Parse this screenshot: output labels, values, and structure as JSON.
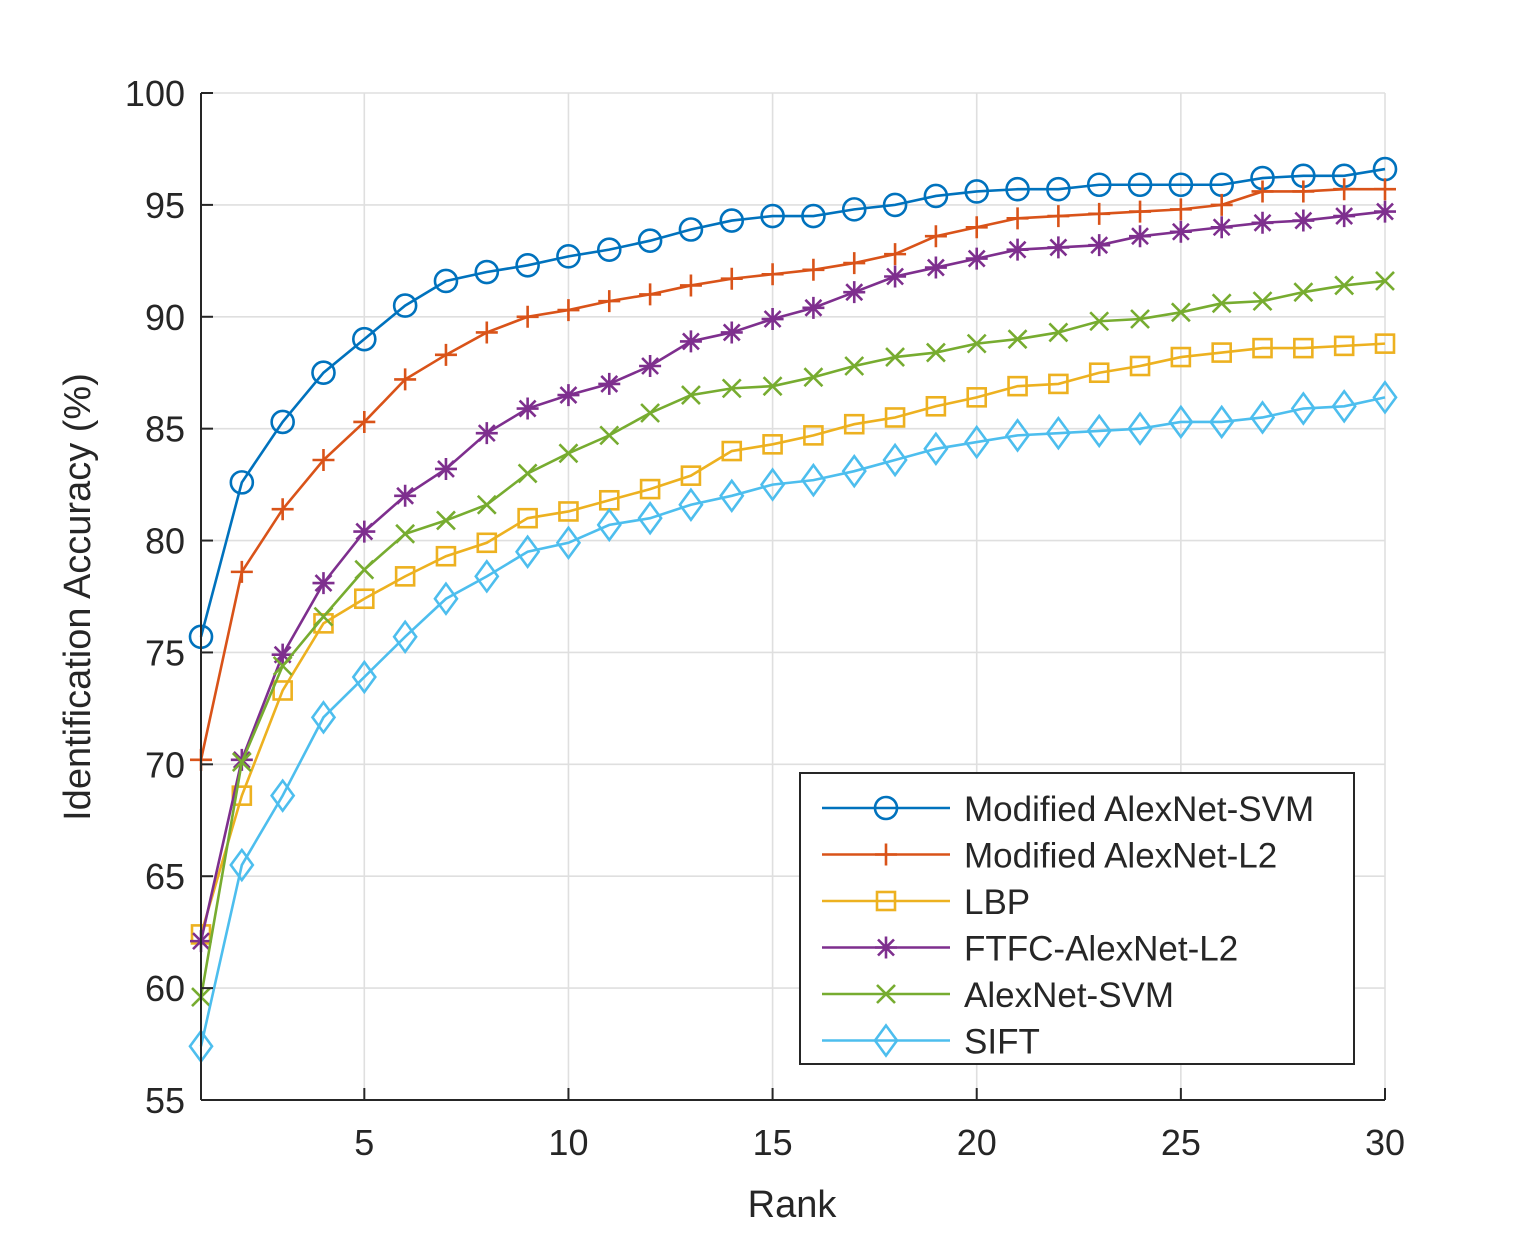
{
  "chart_data": {
    "type": "line",
    "xlabel": "Rank",
    "ylabel": "Identification Accuracy (%)",
    "xlim": [
      1,
      30
    ],
    "ylim": [
      55,
      100
    ],
    "x_ticks": [
      5,
      10,
      15,
      20,
      25,
      30
    ],
    "y_ticks": [
      55,
      60,
      65,
      70,
      75,
      80,
      85,
      90,
      95,
      100
    ],
    "grid": true,
    "legend_position": "bottom-right",
    "x": [
      1,
      2,
      3,
      4,
      5,
      6,
      7,
      8,
      9,
      10,
      11,
      12,
      13,
      14,
      15,
      16,
      17,
      18,
      19,
      20,
      21,
      22,
      23,
      24,
      25,
      26,
      27,
      28,
      29,
      30
    ],
    "series": [
      {
        "name": "Modified AlexNet-SVM",
        "color": "#0072BD",
        "marker": "circle",
        "values": [
          75.7,
          82.6,
          85.3,
          87.5,
          89.0,
          90.5,
          91.6,
          92.0,
          92.3,
          92.7,
          93.0,
          93.4,
          93.9,
          94.3,
          94.5,
          94.5,
          94.8,
          95.0,
          95.4,
          95.6,
          95.7,
          95.7,
          95.9,
          95.9,
          95.9,
          95.9,
          96.2,
          96.3,
          96.3,
          96.6
        ]
      },
      {
        "name": "Modified AlexNet-L2",
        "color": "#D95319",
        "marker": "plus",
        "values": [
          70.2,
          78.6,
          81.4,
          83.6,
          85.3,
          87.2,
          88.3,
          89.3,
          90.0,
          90.3,
          90.7,
          91.0,
          91.4,
          91.7,
          91.9,
          92.1,
          92.4,
          92.8,
          93.6,
          94.0,
          94.4,
          94.5,
          94.6,
          94.7,
          94.8,
          95.0,
          95.6,
          95.6,
          95.7,
          95.7
        ]
      },
      {
        "name": "LBP",
        "color": "#EDB120",
        "marker": "square",
        "values": [
          62.4,
          68.6,
          73.3,
          76.3,
          77.4,
          78.4,
          79.3,
          79.9,
          81.0,
          81.3,
          81.8,
          82.3,
          82.9,
          84.0,
          84.3,
          84.7,
          85.2,
          85.5,
          86.0,
          86.4,
          86.9,
          87.0,
          87.5,
          87.8,
          88.2,
          88.4,
          88.6,
          88.6,
          88.7,
          88.8
        ]
      },
      {
        "name": "FTFC-AlexNet-L2",
        "color": "#7E2F8E",
        "marker": "asterisk",
        "values": [
          62.1,
          70.2,
          74.9,
          78.1,
          80.4,
          82.0,
          83.2,
          84.8,
          85.9,
          86.5,
          87.0,
          87.8,
          88.9,
          89.3,
          89.9,
          90.4,
          91.1,
          91.8,
          92.2,
          92.6,
          93.0,
          93.1,
          93.2,
          93.6,
          93.8,
          94.0,
          94.2,
          94.3,
          94.5,
          94.7
        ]
      },
      {
        "name": "AlexNet-SVM",
        "color": "#77AC30",
        "marker": "cross",
        "values": [
          59.6,
          70.1,
          74.4,
          76.6,
          78.7,
          80.3,
          80.9,
          81.6,
          83.0,
          83.9,
          84.7,
          85.7,
          86.5,
          86.8,
          86.9,
          87.3,
          87.8,
          88.2,
          88.4,
          88.8,
          89.0,
          89.3,
          89.8,
          89.9,
          90.2,
          90.6,
          90.7,
          91.1,
          91.4,
          91.6
        ]
      },
      {
        "name": "SIFT",
        "color": "#4DBEEE",
        "marker": "diamond",
        "values": [
          57.4,
          65.5,
          68.6,
          72.1,
          73.9,
          75.7,
          77.4,
          78.4,
          79.5,
          79.9,
          80.7,
          81.0,
          81.6,
          82.0,
          82.5,
          82.7,
          83.1,
          83.6,
          84.1,
          84.4,
          84.7,
          84.8,
          84.9,
          85.0,
          85.3,
          85.3,
          85.5,
          85.9,
          86.0,
          86.4
        ]
      }
    ]
  }
}
